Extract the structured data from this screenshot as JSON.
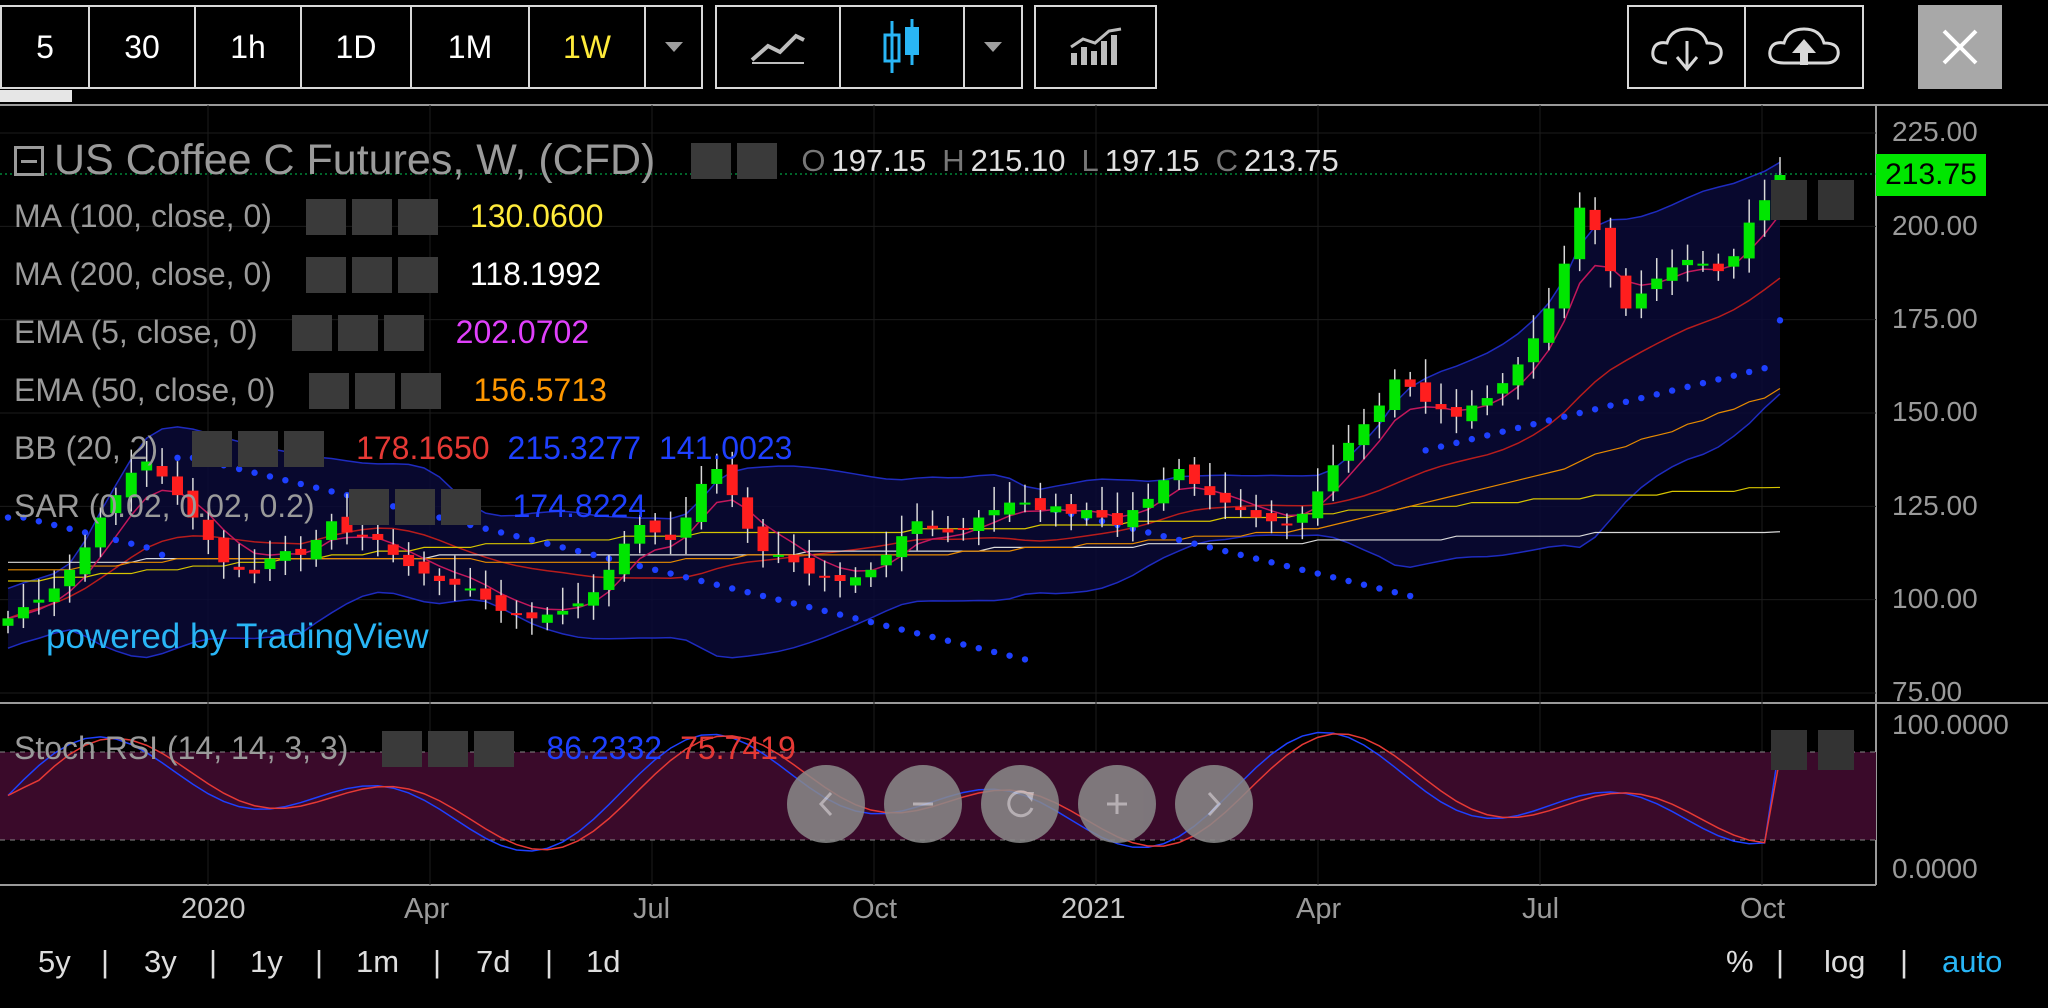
{
  "toolbar": {
    "intervals": [
      "5",
      "30",
      "1h",
      "1D",
      "1M",
      "1W"
    ],
    "active_interval": "1W"
  },
  "legend": {
    "symbol": "US Coffee C Futures, W, (CFD)",
    "ohlc": {
      "o_label": "O",
      "o": "197.15",
      "h_label": "H",
      "h": "215.10",
      "l_label": "L",
      "l": "197.15",
      "c_label": "C",
      "c": "213.75"
    },
    "indicators": [
      {
        "name": "MA (100, close, 0)",
        "value": "130.0600",
        "color": "#ffeb3b"
      },
      {
        "name": "MA (200, close, 0)",
        "value": "118.1992",
        "color": "#ffffff"
      },
      {
        "name": "EMA (5, close, 0)",
        "value": "202.0702",
        "color": "#e040fb"
      },
      {
        "name": "EMA (50, close, 0)",
        "value": "156.5713",
        "color": "#ff9800"
      },
      {
        "name": "BB (20, 2)",
        "values": [
          "178.1650",
          "215.3277",
          "141.0023"
        ],
        "colors": [
          "#e53935",
          "#1e40ff",
          "#1e40ff"
        ]
      },
      {
        "name": "SAR (0.02, 0.02, 0.2)",
        "value": "174.8224",
        "color": "#1e40ff"
      }
    ],
    "stoch": {
      "name": "Stoch RSI (14, 14, 3, 3)",
      "k": "86.2332",
      "d": "75.7419",
      "k_color": "#1e40ff",
      "d_color": "#e53935"
    }
  },
  "watermark": "powered by TradingView",
  "price_axis": [
    "225.00",
    "200.00",
    "175.00",
    "150.00",
    "125.00",
    "100.00",
    "75.00"
  ],
  "current_price": "213.75",
  "stoch_axis": [
    "100.0000",
    "0.0000"
  ],
  "time_axis": [
    {
      "label": "2020",
      "year": true
    },
    {
      "label": "Apr",
      "year": false
    },
    {
      "label": "Jul",
      "year": false
    },
    {
      "label": "Oct",
      "year": false
    },
    {
      "label": "2021",
      "year": true
    },
    {
      "label": "Apr",
      "year": false
    },
    {
      "label": "Jul",
      "year": false
    },
    {
      "label": "Oct",
      "year": false
    }
  ],
  "ranges": [
    "5y",
    "3y",
    "1y",
    "1m",
    "7d",
    "1d"
  ],
  "scale_options": [
    "%",
    "log",
    "auto"
  ],
  "active_scale": "auto",
  "colors": {
    "up": "#00e600",
    "down": "#ff1e1e",
    "accent": "#29b6f6",
    "price_tag": "#00e600"
  },
  "chart_data": {
    "type": "candlestick",
    "timeframe": "1W",
    "ylim": [
      75,
      225
    ],
    "closes": [
      95,
      98,
      100,
      103,
      108,
      114,
      122,
      128,
      134,
      137,
      133,
      128,
      122,
      116,
      110,
      108,
      107,
      111,
      113,
      112,
      116,
      121,
      118,
      117,
      116,
      112,
      109,
      107,
      105,
      104,
      103,
      100,
      97,
      96,
      95,
      96,
      97,
      99,
      102,
      108,
      115,
      120,
      118,
      116,
      122,
      131,
      135,
      128,
      119,
      113,
      112,
      110,
      107,
      106,
      105,
      106,
      108,
      112,
      117,
      121,
      119,
      118,
      119,
      122,
      124,
      126,
      126,
      124,
      125,
      123,
      124,
      122,
      120,
      124,
      127,
      132,
      135,
      131,
      128,
      126,
      124,
      122,
      121,
      120,
      123,
      129,
      136,
      142,
      147,
      152,
      159,
      157,
      153,
      151,
      149,
      152,
      154,
      158,
      163,
      170,
      178,
      190,
      205,
      199,
      188,
      178,
      182,
      186,
      189,
      191,
      190,
      188,
      192,
      201,
      207,
      213.75
    ],
    "ma100": [
      105,
      105,
      105,
      106,
      106,
      106,
      107,
      107,
      107,
      108,
      108,
      108,
      109,
      109,
      109,
      110,
      110,
      110,
      111,
      111,
      111,
      112,
      112,
      112,
      113,
      113,
      113,
      114,
      114,
      114,
      114,
      115,
      115,
      115,
      115,
      116,
      116,
      116,
      116,
      116,
      117,
      117,
      117,
      117,
      117,
      118,
      118,
      118,
      118,
      118,
      118,
      118,
      118,
      118,
      118,
      118,
      118,
      118,
      118,
      119,
      119,
      119,
      119,
      119,
      119,
      119,
      119,
      120,
      120,
      120,
      120,
      120,
      120,
      121,
      121,
      121,
      121,
      121,
      121,
      122,
      122,
      122,
      122,
      122,
      123,
      123,
      123,
      124,
      124,
      124,
      124,
      125,
      125,
      125,
      125,
      126,
      126,
      126,
      126,
      127,
      127,
      127,
      127,
      128,
      128,
      128,
      128,
      128,
      129,
      129,
      129,
      129,
      129,
      130,
      130,
      130.06
    ],
    "ma200": [
      110,
      110,
      110,
      110,
      110,
      110,
      110,
      110,
      110,
      111,
      111,
      111,
      111,
      111,
      111,
      111,
      111,
      111,
      111,
      111,
      111,
      111,
      111,
      111,
      111,
      111,
      111,
      111,
      112,
      112,
      112,
      112,
      112,
      112,
      112,
      112,
      112,
      112,
      112,
      112,
      112,
      112,
      112,
      112,
      112,
      112,
      112,
      112,
      112,
      112,
      112,
      112,
      113,
      113,
      113,
      113,
      113,
      113,
      113,
      113,
      113,
      113,
      113,
      113,
      114,
      114,
      114,
      114,
      114,
      114,
      114,
      114,
      114,
      114,
      115,
      115,
      115,
      115,
      115,
      115,
      115,
      115,
      115,
      115,
      115,
      116,
      116,
      116,
      116,
      116,
      116,
      116,
      116,
      116,
      117,
      117,
      117,
      117,
      117,
      117,
      117,
      117,
      117,
      118,
      118,
      118,
      118,
      118,
      118,
      118,
      118,
      118,
      118,
      118,
      118,
      118.1992
    ],
    "ema50": [
      108,
      108,
      108,
      108,
      108,
      109,
      109,
      109,
      110,
      110,
      110,
      111,
      111,
      111,
      111,
      111,
      111,
      111,
      111,
      111,
      111,
      111,
      111,
      111,
      111,
      111,
      111,
      111,
      111,
      111,
      111,
      110,
      110,
      110,
      110,
      110,
      110,
      110,
      110,
      110,
      110,
      110,
      110,
      110,
      111,
      111,
      111,
      111,
      112,
      112,
      112,
      112,
      112,
      112,
      112,
      112,
      112,
      112,
      112,
      112,
      112,
      112,
      113,
      113,
      113,
      113,
      114,
      114,
      114,
      114,
      115,
      115,
      115,
      115,
      116,
      116,
      116,
      117,
      117,
      117,
      117,
      118,
      118,
      118,
      119,
      119,
      120,
      121,
      122,
      123,
      124,
      125,
      126,
      127,
      128,
      129,
      130,
      131,
      132,
      133,
      134,
      135,
      137,
      139,
      140,
      141,
      143,
      144,
      145,
      147,
      148,
      150,
      151,
      153,
      154,
      156.5713
    ],
    "sar": [
      122,
      122,
      121,
      120,
      119,
      118,
      117,
      116,
      115,
      114,
      112,
      138,
      138,
      137,
      136,
      135,
      134,
      133,
      132,
      131,
      130,
      129,
      128,
      127,
      126,
      125,
      124,
      123,
      122,
      121,
      120,
      119,
      118,
      117,
      116,
      115,
      114,
      113,
      112,
      111,
      110,
      109,
      108,
      107,
      106,
      105,
      104,
      103,
      102,
      101,
      100,
      99,
      98,
      97,
      96,
      95,
      94,
      93,
      92,
      91,
      90,
      89,
      88,
      87,
      86,
      85,
      84,
      125,
      124,
      123,
      122,
      121,
      120,
      119,
      118,
      117,
      116,
      115,
      114,
      113,
      112,
      111,
      110,
      109,
      108,
      107,
      106,
      105,
      104,
      103,
      102,
      101,
      140,
      141,
      142,
      143,
      144,
      145,
      146,
      147,
      148,
      149,
      150,
      151,
      152,
      153,
      154,
      155,
      156,
      157,
      158,
      159,
      160,
      161,
      162,
      174.8224
    ],
    "stoch_range": [
      0,
      100
    ]
  }
}
